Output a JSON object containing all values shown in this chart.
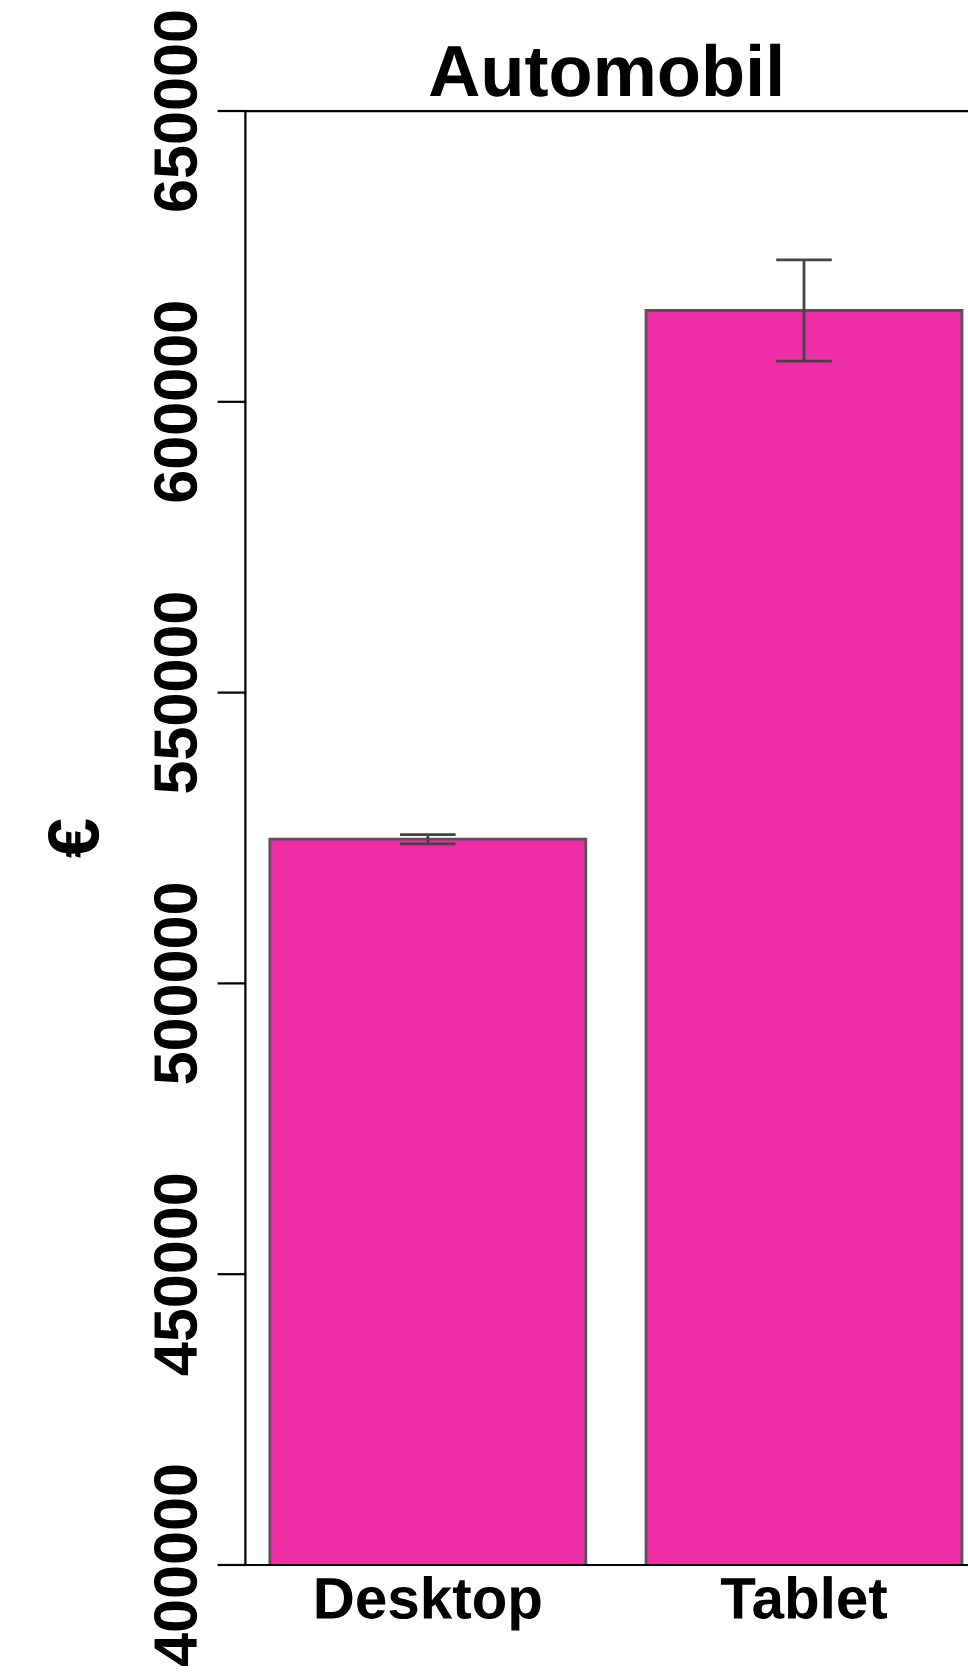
{
  "chart_data": {
    "type": "bar",
    "title": "Automobil",
    "ylabel": "€",
    "categories": [
      "Desktop",
      "Tablet"
    ],
    "values": [
      524800,
      615700
    ],
    "errors": [
      800,
      8700
    ],
    "color": "#ee2ea6",
    "ylim": [
      400000,
      650000
    ],
    "yticks": [
      400000,
      450000,
      500000,
      550000,
      600000,
      650000
    ],
    "grid": false
  }
}
